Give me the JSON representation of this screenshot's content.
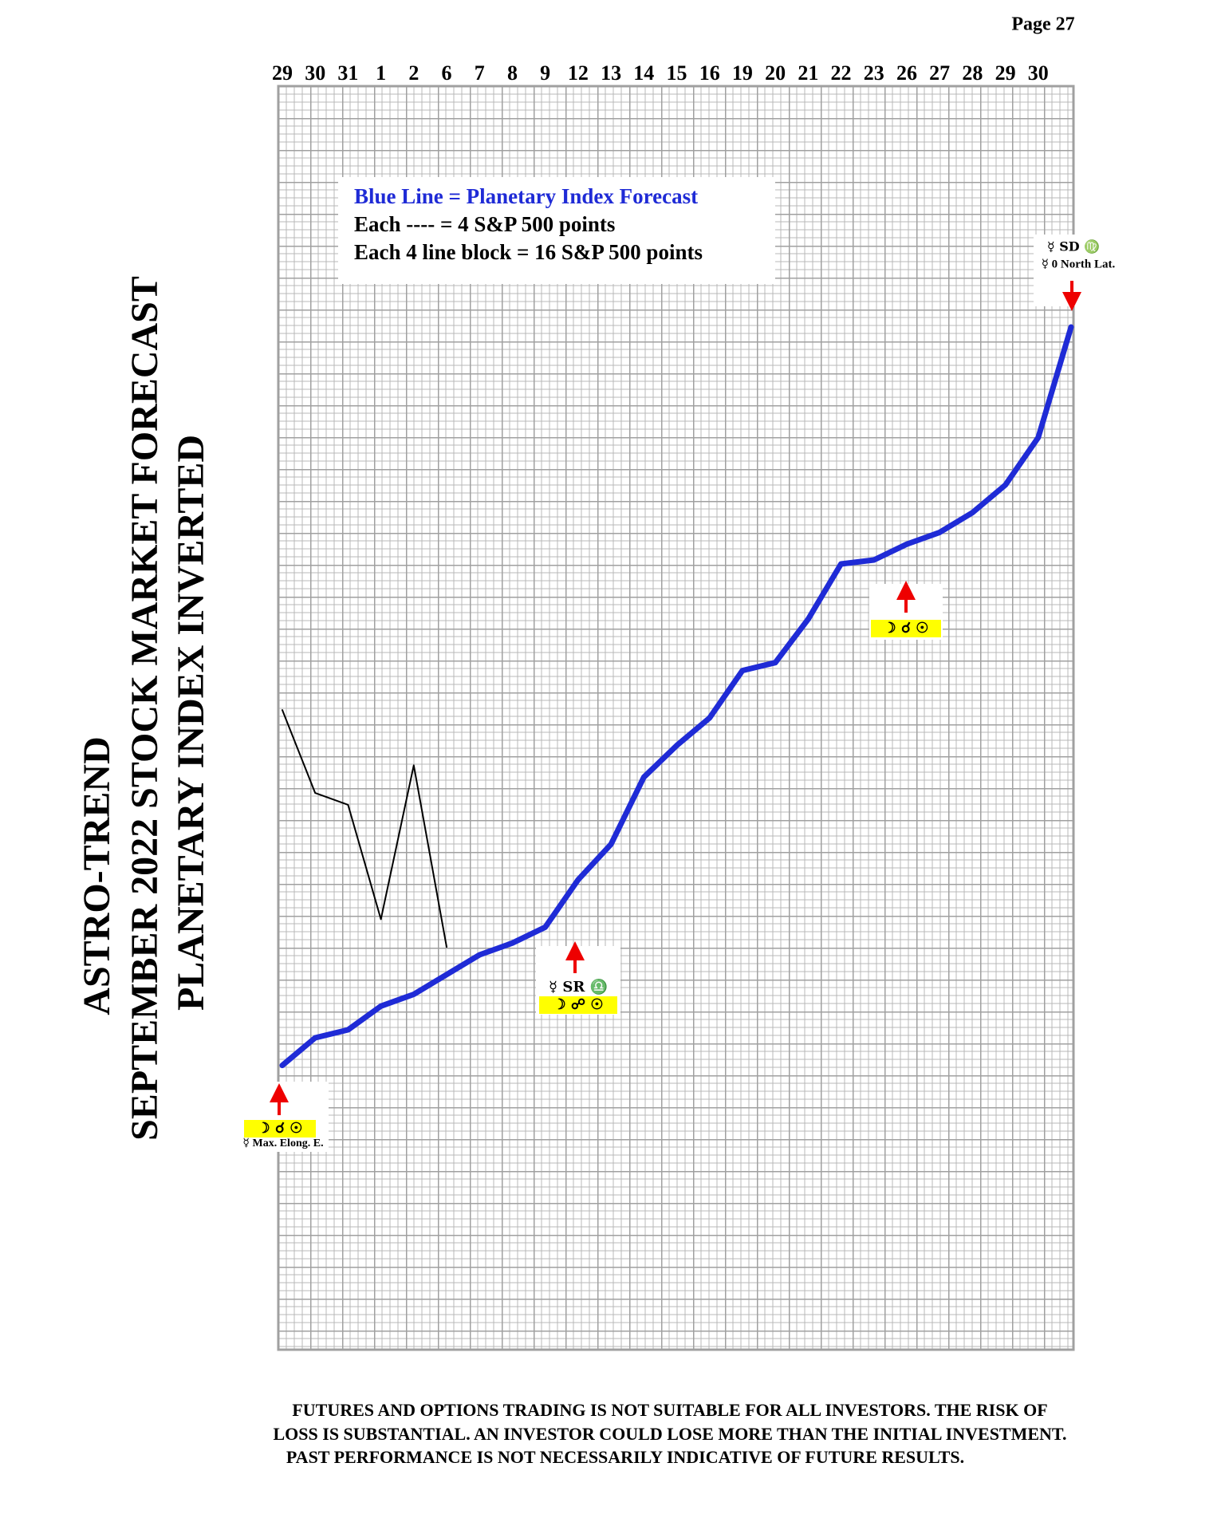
{
  "page": "Page 27",
  "chart_data": {
    "type": "line",
    "title": "ASTRO-TREND",
    "subtitle": "SEPTEMBER 2022  STOCK MARKET FORECAST",
    "subtitle2": "PLANETARY INDEX INVERTED",
    "legend_lines": [
      "Blue Line = Planetary Index Forecast",
      "Each ---- =   4 S&P 500 points",
      "Each 4 line block =  16  S&P 500 points"
    ],
    "categories": [
      "29",
      "30",
      "31",
      "1",
      "2",
      "6",
      "7",
      "8",
      "9",
      "12",
      "13",
      "14",
      "15",
      "16",
      "19",
      "20",
      "21",
      "22",
      "23",
      "26",
      "27",
      "28",
      "29",
      "30",
      null
    ],
    "ylim": [
      0,
      640
    ],
    "series": [
      {
        "color": "#1f2bd6",
        "values": [
          144,
          158,
          162,
          174,
          180,
          190,
          200,
          206,
          214,
          238,
          256,
          290,
          306,
          320,
          344,
          348,
          370,
          398,
          400,
          408,
          414,
          424,
          438,
          462,
          518
        ]
      },
      {
        "color": "#000000",
        "values": [
          324,
          282,
          276,
          218,
          296,
          204,
          null,
          null,
          null,
          null,
          null,
          null,
          null,
          null,
          null,
          null,
          null,
          null,
          null,
          null,
          null,
          null,
          null,
          null,
          null
        ]
      }
    ],
    "annotations": [
      {
        "lines": [
          "☽ ☌ ☉",
          "☿ Max. Elong. E."
        ]
      },
      {
        "lines": [
          "☿ SR ♎",
          "☽ ☍ ☉"
        ]
      },
      {
        "lines": [
          "☽ ☌ ☉"
        ]
      },
      {
        "lines": [
          "☿ SD ♍",
          "☿ 0 North Lat."
        ]
      }
    ]
  },
  "disclaimer": [
    "FUTURES AND OPTIONS TRADING IS NOT SUITABLE FOR ALL INVESTORS.  THE RISK OF",
    "LOSS IS SUBSTANTIAL.  AN INVESTOR COULD LOSE MORE THAN THE INITIAL INVESTMENT.",
    "PAST PERFORMANCE IS NOT NECESSARILY INDICATIVE OF FUTURE RESULTS."
  ]
}
